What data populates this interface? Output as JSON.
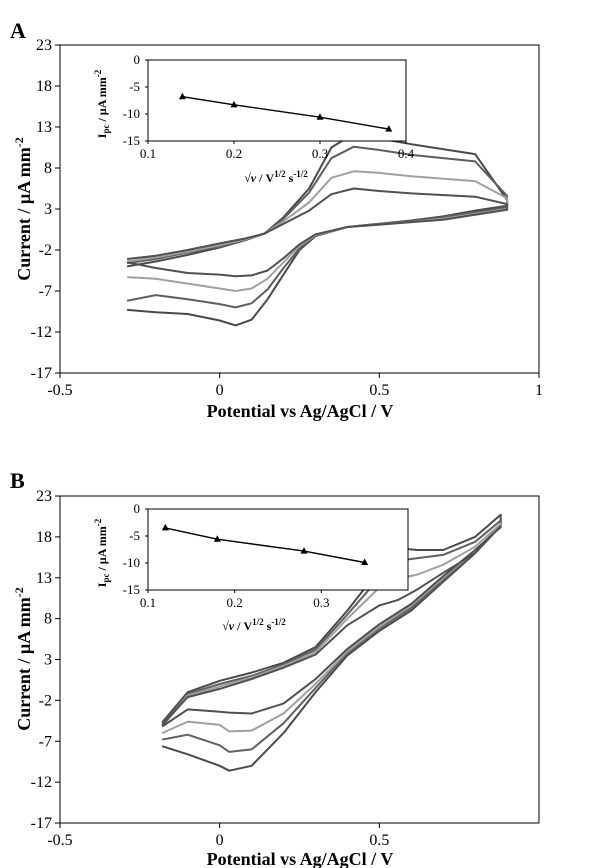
{
  "chart_data": [
    {
      "type": "line",
      "panel": "A",
      "xlabel": "Potential vs Ag/AgCl / V",
      "ylabel": "Current / µA mm-2",
      "xlim": [
        -0.5,
        1
      ],
      "ylim": [
        -17,
        23
      ],
      "xticks": [
        "-0.5",
        "0",
        "0.5",
        "1"
      ],
      "yticks": [
        "23",
        "18",
        "13",
        "8",
        "3",
        "-2",
        "-7",
        "-12",
        "-17"
      ],
      "grid": false,
      "series": [
        {
          "color": "#4a4a4a",
          "points": [
            [
              -0.29,
              -9.3
            ],
            [
              -0.2,
              -9.6
            ],
            [
              -0.1,
              -9.8
            ],
            [
              0.0,
              -10.6
            ],
            [
              0.05,
              -11.2
            ],
            [
              0.1,
              -10.5
            ],
            [
              0.15,
              -8.0
            ],
            [
              0.2,
              -5.0
            ],
            [
              0.25,
              -2.0
            ],
            [
              0.3,
              -0.3
            ],
            [
              0.4,
              0.8
            ],
            [
              0.5,
              1.2
            ],
            [
              0.6,
              1.6
            ],
            [
              0.7,
              2.1
            ],
            [
              0.8,
              2.8
            ],
            [
              0.9,
              3.4
            ],
            [
              0.9,
              4.1
            ],
            [
              0.8,
              9.7
            ],
            [
              0.6,
              10.9
            ],
            [
              0.5,
              11.6
            ],
            [
              0.42,
              12.2
            ],
            [
              0.35,
              10.5
            ],
            [
              0.28,
              5.5
            ],
            [
              0.2,
              2.0
            ],
            [
              0.14,
              0.0
            ],
            [
              0.08,
              -0.8
            ],
            [
              0.0,
              -1.7
            ],
            [
              -0.1,
              -2.6
            ],
            [
              -0.2,
              -3.4
            ],
            [
              -0.29,
              -4.0
            ]
          ]
        },
        {
          "color": "#5e5e5e",
          "points": [
            [
              -0.29,
              -8.2
            ],
            [
              -0.2,
              -7.5
            ],
            [
              -0.1,
              -8.0
            ],
            [
              0.0,
              -8.6
            ],
            [
              0.05,
              -9.0
            ],
            [
              0.1,
              -8.5
            ],
            [
              0.15,
              -6.8
            ],
            [
              0.2,
              -4.2
            ],
            [
              0.25,
              -1.8
            ],
            [
              0.3,
              -0.2
            ],
            [
              0.4,
              0.8
            ],
            [
              0.5,
              1.2
            ],
            [
              0.6,
              1.5
            ],
            [
              0.7,
              2.0
            ],
            [
              0.8,
              2.6
            ],
            [
              0.9,
              3.2
            ],
            [
              0.9,
              4.6
            ],
            [
              0.8,
              8.8
            ],
            [
              0.6,
              9.6
            ],
            [
              0.5,
              10.2
            ],
            [
              0.42,
              10.6
            ],
            [
              0.35,
              9.2
            ],
            [
              0.28,
              5.0
            ],
            [
              0.2,
              1.8
            ],
            [
              0.14,
              0.0
            ],
            [
              0.08,
              -0.8
            ],
            [
              0.0,
              -1.6
            ],
            [
              -0.1,
              -2.3
            ],
            [
              -0.2,
              -3.1
            ],
            [
              -0.29,
              -3.6
            ]
          ]
        },
        {
          "color": "#a0a0a0",
          "points": [
            [
              -0.29,
              -5.3
            ],
            [
              -0.2,
              -5.5
            ],
            [
              -0.1,
              -6.1
            ],
            [
              0.0,
              -6.7
            ],
            [
              0.05,
              -7.0
            ],
            [
              0.1,
              -6.7
            ],
            [
              0.15,
              -5.5
            ],
            [
              0.2,
              -3.5
            ],
            [
              0.25,
              -1.5
            ],
            [
              0.3,
              -0.2
            ],
            [
              0.4,
              0.8
            ],
            [
              0.5,
              1.1
            ],
            [
              0.6,
              1.4
            ],
            [
              0.7,
              1.8
            ],
            [
              0.8,
              2.4
            ],
            [
              0.9,
              3.0
            ],
            [
              0.9,
              4.3
            ],
            [
              0.8,
              6.4
            ],
            [
              0.6,
              7.0
            ],
            [
              0.5,
              7.4
            ],
            [
              0.42,
              7.6
            ],
            [
              0.35,
              6.8
            ],
            [
              0.28,
              3.8
            ],
            [
              0.2,
              1.5
            ],
            [
              0.14,
              0.0
            ],
            [
              0.08,
              -0.7
            ],
            [
              0.0,
              -1.4
            ],
            [
              -0.1,
              -2.2
            ],
            [
              -0.2,
              -2.9
            ],
            [
              -0.29,
              -3.4
            ]
          ]
        },
        {
          "color": "#505050",
          "points": [
            [
              -0.29,
              -3.5
            ],
            [
              -0.2,
              -4.2
            ],
            [
              -0.1,
              -4.8
            ],
            [
              0.0,
              -5.0
            ],
            [
              0.05,
              -5.2
            ],
            [
              0.1,
              -5.1
            ],
            [
              0.15,
              -4.5
            ],
            [
              0.2,
              -3.0
            ],
            [
              0.25,
              -1.3
            ],
            [
              0.3,
              -0.1
            ],
            [
              0.4,
              0.8
            ],
            [
              0.5,
              1.1
            ],
            [
              0.6,
              1.4
            ],
            [
              0.7,
              1.7
            ],
            [
              0.8,
              2.3
            ],
            [
              0.9,
              2.9
            ],
            [
              0.9,
              3.6
            ],
            [
              0.8,
              4.5
            ],
            [
              0.6,
              4.9
            ],
            [
              0.5,
              5.2
            ],
            [
              0.42,
              5.5
            ],
            [
              0.35,
              4.8
            ],
            [
              0.28,
              2.8
            ],
            [
              0.2,
              1.2
            ],
            [
              0.14,
              0.0
            ],
            [
              0.08,
              -0.6
            ],
            [
              0.0,
              -1.2
            ],
            [
              -0.1,
              -2.0
            ],
            [
              -0.2,
              -2.7
            ],
            [
              -0.29,
              -3.1
            ]
          ]
        }
      ],
      "inset": {
        "ylabel": "Ipc / µA mm-2",
        "xlabel": "√ν / V1/2 s-1/2",
        "xlim": [
          0.1,
          0.4
        ],
        "ylim": [
          -15,
          0
        ],
        "xticks": [
          "0.1",
          "0.2",
          "0.3",
          "0.4"
        ],
        "yticks": [
          "0",
          "-5",
          "-10",
          "-15"
        ],
        "points": [
          [
            0.14,
            -6.8
          ],
          [
            0.2,
            -8.3
          ],
          [
            0.3,
            -10.6
          ],
          [
            0.38,
            -12.8
          ]
        ]
      }
    },
    {
      "type": "line",
      "panel": "B",
      "xlabel": "Potential vs Ag/AgCl / V",
      "ylabel": "Current / µA mm-2",
      "xlim": [
        -0.5,
        1
      ],
      "ylim": [
        -17,
        23
      ],
      "xticks": [
        "-0.5",
        "0",
        "0.5"
      ],
      "yticks": [
        "23",
        "18",
        "13",
        "8",
        "3",
        "-2",
        "-7",
        "-12",
        "-17"
      ],
      "grid": false,
      "series": [
        {
          "color": "#4a4a4a",
          "points": [
            [
              -0.18,
              -7.6
            ],
            [
              -0.1,
              -8.6
            ],
            [
              0.0,
              -10.0
            ],
            [
              0.03,
              -10.6
            ],
            [
              0.1,
              -10.0
            ],
            [
              0.2,
              -6.0
            ],
            [
              0.3,
              -1.0
            ],
            [
              0.4,
              3.5
            ],
            [
              0.5,
              6.5
            ],
            [
              0.6,
              9.0
            ],
            [
              0.7,
              12.5
            ],
            [
              0.8,
              16.0
            ],
            [
              0.88,
              19.5
            ],
            [
              0.88,
              20.7
            ],
            [
              0.8,
              18.0
            ],
            [
              0.7,
              16.4
            ],
            [
              0.62,
              16.4
            ],
            [
              0.56,
              16.6
            ],
            [
              0.5,
              14.0
            ],
            [
              0.4,
              9.0
            ],
            [
              0.3,
              4.5
            ],
            [
              0.2,
              2.6
            ],
            [
              0.1,
              1.4
            ],
            [
              0.0,
              0.4
            ],
            [
              -0.1,
              -1.0
            ],
            [
              -0.18,
              -4.7
            ]
          ]
        },
        {
          "color": "#606060",
          "points": [
            [
              -0.18,
              -6.8
            ],
            [
              -0.1,
              -6.2
            ],
            [
              0.0,
              -7.5
            ],
            [
              0.03,
              -8.3
            ],
            [
              0.1,
              -8.0
            ],
            [
              0.2,
              -4.8
            ],
            [
              0.3,
              -0.5
            ],
            [
              0.4,
              3.8
            ],
            [
              0.5,
              6.8
            ],
            [
              0.6,
              9.3
            ],
            [
              0.7,
              12.7
            ],
            [
              0.8,
              16.2
            ],
            [
              0.88,
              19.4
            ],
            [
              0.88,
              20.0
            ],
            [
              0.8,
              17.4
            ],
            [
              0.7,
              15.8
            ],
            [
              0.62,
              15.4
            ],
            [
              0.56,
              15.1
            ],
            [
              0.5,
              13.0
            ],
            [
              0.4,
              8.5
            ],
            [
              0.3,
              4.2
            ],
            [
              0.2,
              2.4
            ],
            [
              0.1,
              1.0
            ],
            [
              0.0,
              0.0
            ],
            [
              -0.1,
              -1.2
            ],
            [
              -0.18,
              -4.9
            ]
          ]
        },
        {
          "color": "#a0a0a0",
          "points": [
            [
              -0.18,
              -6.0
            ],
            [
              -0.1,
              -4.6
            ],
            [
              0.0,
              -5.0
            ],
            [
              0.03,
              -5.8
            ],
            [
              0.1,
              -5.7
            ],
            [
              0.2,
              -3.6
            ],
            [
              0.3,
              0.0
            ],
            [
              0.4,
              4.0
            ],
            [
              0.5,
              7.0
            ],
            [
              0.6,
              9.6
            ],
            [
              0.7,
              13.0
            ],
            [
              0.8,
              16.3
            ],
            [
              0.88,
              19.3
            ],
            [
              0.88,
              19.6
            ],
            [
              0.8,
              16.8
            ],
            [
              0.7,
              14.6
            ],
            [
              0.62,
              13.4
            ],
            [
              0.56,
              12.9
            ],
            [
              0.5,
              11.8
            ],
            [
              0.4,
              8.0
            ],
            [
              0.3,
              3.9
            ],
            [
              0.2,
              2.2
            ],
            [
              0.1,
              0.8
            ],
            [
              0.0,
              -0.3
            ],
            [
              -0.1,
              -1.4
            ],
            [
              -0.18,
              -5.2
            ]
          ]
        },
        {
          "color": "#505050",
          "points": [
            [
              -0.18,
              -5.2
            ],
            [
              -0.1,
              -3.1
            ],
            [
              0.0,
              -3.4
            ],
            [
              0.03,
              -3.5
            ],
            [
              0.1,
              -3.6
            ],
            [
              0.2,
              -2.4
            ],
            [
              0.3,
              0.6
            ],
            [
              0.4,
              4.3
            ],
            [
              0.5,
              7.3
            ],
            [
              0.6,
              9.8
            ],
            [
              0.7,
              13.2
            ],
            [
              0.8,
              16.4
            ],
            [
              0.88,
              19.2
            ],
            [
              0.88,
              19.3
            ],
            [
              0.8,
              16.0
            ],
            [
              0.7,
              13.6
            ],
            [
              0.62,
              11.6
            ],
            [
              0.56,
              10.3
            ],
            [
              0.5,
              9.6
            ],
            [
              0.4,
              7.2
            ],
            [
              0.3,
              3.6
            ],
            [
              0.2,
              2.0
            ],
            [
              0.1,
              0.6
            ],
            [
              0.0,
              -0.6
            ],
            [
              -0.1,
              -1.6
            ],
            [
              -0.18,
              -5.0
            ]
          ]
        }
      ],
      "inset": {
        "ylabel": "Ipc / µA mm-2",
        "xlabel": "√ν / V1/2 s-1/2",
        "xlim": [
          0.1,
          0.4
        ],
        "ylim": [
          -15,
          0
        ],
        "xticks": [
          "0.1",
          "0.2",
          "0.3"
        ],
        "yticks": [
          "0",
          "-5",
          "-10",
          "-15"
        ],
        "points": [
          [
            0.12,
            -3.5
          ],
          [
            0.18,
            -5.6
          ],
          [
            0.28,
            -7.8
          ],
          [
            0.35,
            -9.9
          ]
        ]
      }
    }
  ]
}
